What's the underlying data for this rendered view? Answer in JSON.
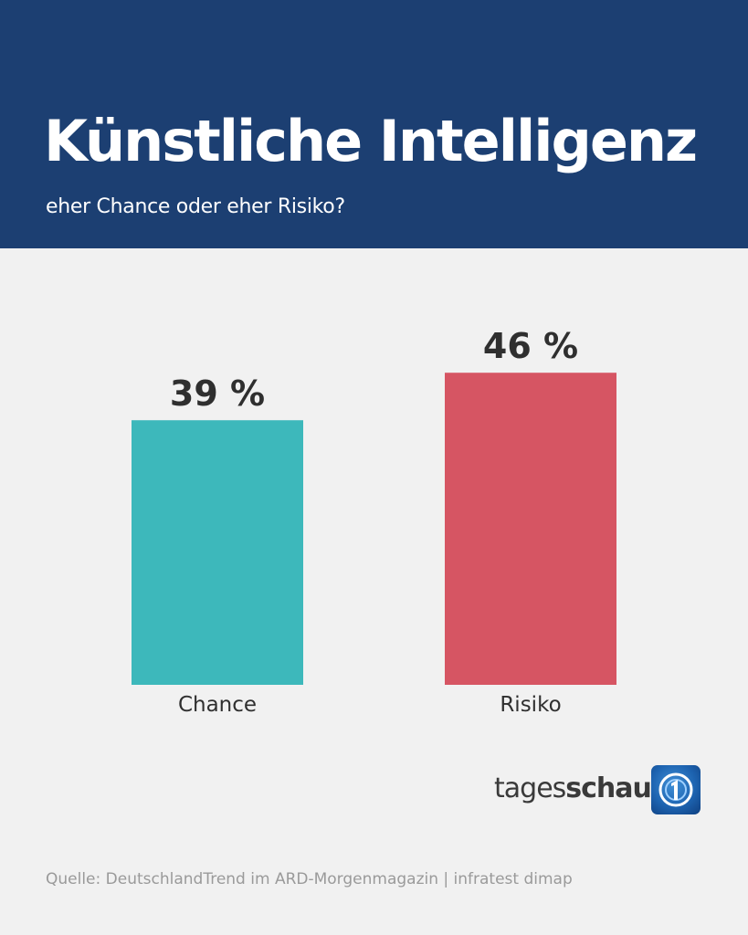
{
  "header": {
    "title": "Künstliche Intelligenz",
    "subtitle": "eher Chance oder eher Risiko?"
  },
  "chart_data": {
    "type": "bar",
    "categories": [
      "Chance",
      "Risiko"
    ],
    "values": [
      39,
      46
    ],
    "value_labels": [
      "39 %",
      "46 %"
    ],
    "colors": [
      "#3db8bb",
      "#d65563"
    ],
    "ylim": [
      0,
      100
    ],
    "grid": false,
    "legend": "none"
  },
  "brand": {
    "name_light": "tages",
    "name_bold": "schau",
    "logo_icon": "ard-one-logo-icon"
  },
  "footer": {
    "source": "Quelle: DeutschlandTrend im ARD-Morgenmagazin | infratest dimap"
  }
}
